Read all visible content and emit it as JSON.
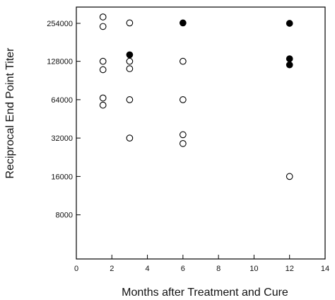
{
  "chart_data": {
    "type": "scatter",
    "title": "",
    "xlabel": "Months after Treatment and Cure",
    "ylabel": "Reciprocal End Point Titer",
    "xlim": [
      0,
      14
    ],
    "ylim": [
      4000,
      320000
    ],
    "y_scale": "log2",
    "grid": false,
    "x_ticks": [
      "0",
      "2",
      "4",
      "6",
      "8",
      "10",
      "12",
      "14"
    ],
    "y_ticks": [
      {
        "value": 254000,
        "label": "254000"
      },
      {
        "value": 128000,
        "label": "128000"
      },
      {
        "value": 64000,
        "label": "64000"
      },
      {
        "value": 32000,
        "label": "32000"
      },
      {
        "value": 16000,
        "label": "16000"
      },
      {
        "value": 8000,
        "label": "8000"
      }
    ],
    "series": [
      {
        "marker": "open-circle",
        "color": "#000000",
        "points": [
          {
            "x": 1.5,
            "y": 285000
          },
          {
            "x": 1.5,
            "y": 240000
          },
          {
            "x": 1.5,
            "y": 128000
          },
          {
            "x": 1.5,
            "y": 110000
          },
          {
            "x": 1.5,
            "y": 66000
          },
          {
            "x": 1.5,
            "y": 58000
          },
          {
            "x": 3,
            "y": 256000
          },
          {
            "x": 3,
            "y": 128000
          },
          {
            "x": 3,
            "y": 112000
          },
          {
            "x": 3,
            "y": 64000
          },
          {
            "x": 3,
            "y": 32000
          },
          {
            "x": 6,
            "y": 128000
          },
          {
            "x": 6,
            "y": 64000
          },
          {
            "x": 6,
            "y": 34000
          },
          {
            "x": 6,
            "y": 29000
          },
          {
            "x": 12,
            "y": 16000
          }
        ]
      },
      {
        "marker": "filled-circle",
        "color": "#000000",
        "points": [
          {
            "x": 3,
            "y": 144000
          },
          {
            "x": 6,
            "y": 256000
          },
          {
            "x": 12,
            "y": 254000
          },
          {
            "x": 12,
            "y": 134000
          },
          {
            "x": 12,
            "y": 120000
          }
        ]
      }
    ]
  }
}
